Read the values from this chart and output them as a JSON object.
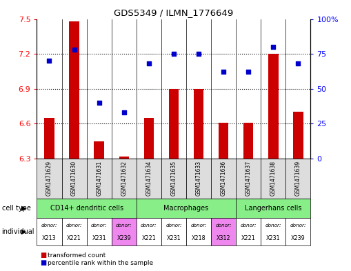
{
  "title": "GDS5349 / ILMN_1776649",
  "samples": [
    "GSM1471629",
    "GSM1471630",
    "GSM1471631",
    "GSM1471632",
    "GSM1471634",
    "GSM1471635",
    "GSM1471633",
    "GSM1471636",
    "GSM1471637",
    "GSM1471638",
    "GSM1471639"
  ],
  "bar_values": [
    6.65,
    7.48,
    6.45,
    6.32,
    6.65,
    6.9,
    6.9,
    6.61,
    6.61,
    7.2,
    6.7
  ],
  "dot_values": [
    70,
    78,
    40,
    33,
    68,
    75,
    75,
    62,
    62,
    80,
    68
  ],
  "ylim": [
    6.3,
    7.5
  ],
  "y2lim": [
    0,
    100
  ],
  "yticks": [
    6.3,
    6.6,
    6.9,
    7.2,
    7.5
  ],
  "y2ticks": [
    0,
    25,
    50,
    75,
    100
  ],
  "bar_color": "#cc0000",
  "dot_color": "#0000cc",
  "cell_type_groups": [
    {
      "label": "CD14+ dendritic cells",
      "start": 0,
      "end": 4,
      "color": "#88ee88"
    },
    {
      "label": "Macrophages",
      "start": 4,
      "end": 8,
      "color": "#88ee88"
    },
    {
      "label": "Langerhans cells",
      "start": 8,
      "end": 11,
      "color": "#88ee88"
    }
  ],
  "individuals": [
    {
      "donor": "X213",
      "bg": "#ffffff"
    },
    {
      "donor": "X221",
      "bg": "#ffffff"
    },
    {
      "donor": "X231",
      "bg": "#ffffff"
    },
    {
      "donor": "X239",
      "bg": "#ee88ee"
    },
    {
      "donor": "X221",
      "bg": "#ffffff"
    },
    {
      "donor": "X231",
      "bg": "#ffffff"
    },
    {
      "donor": "X218",
      "bg": "#ffffff"
    },
    {
      "donor": "X312",
      "bg": "#ee88ee"
    },
    {
      "donor": "X221",
      "bg": "#ffffff"
    },
    {
      "donor": "X231",
      "bg": "#ffffff"
    },
    {
      "donor": "X239",
      "bg": "#ffffff"
    }
  ],
  "gsm_bg": "#dddddd",
  "legend_bar_label": "transformed count",
  "legend_dot_label": "percentile rank within the sample"
}
